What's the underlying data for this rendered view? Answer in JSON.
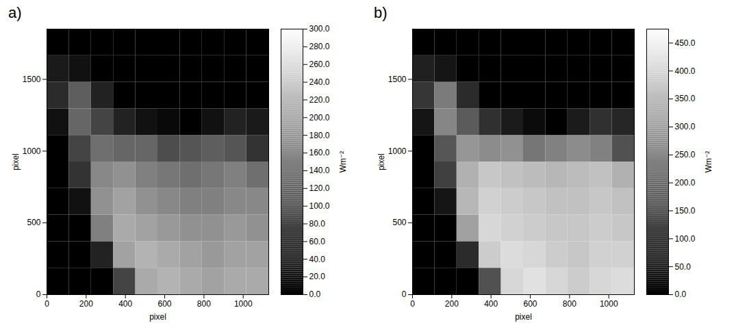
{
  "chart_data": [
    {
      "type": "heatmap",
      "title": "a)",
      "xlabel": "pixel",
      "ylabel": "pixel",
      "xlim": [
        0,
        1130
      ],
      "ylim": [
        0,
        1850
      ],
      "xticks": [
        0,
        200,
        400,
        600,
        800,
        1000
      ],
      "yticks": [
        0,
        500,
        1000,
        1500
      ],
      "x_edges": [
        0,
        113,
        226,
        339,
        452,
        565,
        678,
        791,
        904,
        1017,
        1130
      ],
      "y_edges": [
        0,
        185,
        370,
        555,
        740,
        925,
        1110,
        1295,
        1480,
        1665,
        1850
      ],
      "cells": [
        [
          0,
          0,
          0,
          80,
          200,
          210,
          200,
          190,
          200,
          200
        ],
        [
          0,
          0,
          40,
          190,
          210,
          200,
          190,
          180,
          190,
          190
        ],
        [
          0,
          0,
          150,
          200,
          190,
          180,
          170,
          170,
          180,
          170
        ],
        [
          0,
          20,
          170,
          190,
          170,
          160,
          150,
          150,
          160,
          160
        ],
        [
          0,
          60,
          160,
          170,
          150,
          140,
          130,
          140,
          150,
          130
        ],
        [
          0,
          80,
          130,
          120,
          120,
          90,
          100,
          110,
          100,
          60
        ],
        [
          20,
          120,
          80,
          40,
          20,
          10,
          0,
          20,
          40,
          30
        ],
        [
          50,
          110,
          40,
          0,
          0,
          0,
          0,
          0,
          0,
          0
        ],
        [
          30,
          20,
          0,
          0,
          0,
          0,
          0,
          0,
          0,
          0
        ],
        [
          0,
          0,
          0,
          0,
          0,
          0,
          0,
          0,
          0,
          0
        ]
      ],
      "colorbar": {
        "label": "Wm⁻²",
        "range": [
          0,
          300
        ],
        "ticks": [
          {
            "value": 0,
            "label": "0.0"
          },
          {
            "value": 20,
            "label": "20.0"
          },
          {
            "value": 40,
            "label": "40.0"
          },
          {
            "value": 60,
            "label": "60.0"
          },
          {
            "value": 80,
            "label": "80.0"
          },
          {
            "value": 100,
            "label": "100.0"
          },
          {
            "value": 120,
            "label": "120.0"
          },
          {
            "value": 140,
            "label": "140.0"
          },
          {
            "value": 160,
            "label": "160.0"
          },
          {
            "value": 180,
            "label": "180.0"
          },
          {
            "value": 200,
            "label": "200.0"
          },
          {
            "value": 220,
            "label": "220.0"
          },
          {
            "value": 240,
            "label": "240.0"
          },
          {
            "value": 260,
            "label": "260.0"
          },
          {
            "value": 280,
            "label": "280.0"
          },
          {
            "value": 300,
            "label": "300.0"
          }
        ]
      }
    },
    {
      "type": "heatmap",
      "title": "b)",
      "xlabel": "pixel",
      "ylabel": "pixel",
      "xlim": [
        0,
        1130
      ],
      "ylim": [
        0,
        1850
      ],
      "xticks": [
        0,
        200,
        400,
        600,
        800,
        1000
      ],
      "yticks": [
        0,
        500,
        1000,
        1500
      ],
      "x_edges": [
        0,
        113,
        226,
        339,
        452,
        565,
        678,
        791,
        904,
        1017,
        1130
      ],
      "y_edges": [
        0,
        185,
        370,
        555,
        740,
        925,
        1110,
        1295,
        1480,
        1665,
        1850
      ],
      "cells": [
        [
          0,
          0,
          0,
          150,
          400,
          420,
          400,
          380,
          400,
          410
        ],
        [
          0,
          0,
          80,
          380,
          410,
          400,
          380,
          370,
          390,
          390
        ],
        [
          0,
          0,
          300,
          400,
          390,
          380,
          370,
          370,
          380,
          370
        ],
        [
          0,
          40,
          340,
          390,
          380,
          370,
          360,
          360,
          370,
          360
        ],
        [
          0,
          120,
          330,
          370,
          360,
          350,
          340,
          350,
          360,
          330
        ],
        [
          0,
          160,
          280,
          260,
          270,
          220,
          240,
          260,
          240,
          150
        ],
        [
          40,
          250,
          170,
          90,
          50,
          20,
          0,
          50,
          90,
          70
        ],
        [
          100,
          230,
          80,
          0,
          0,
          0,
          0,
          0,
          0,
          0
        ],
        [
          60,
          40,
          0,
          0,
          0,
          0,
          0,
          0,
          0,
          0
        ],
        [
          0,
          0,
          0,
          0,
          0,
          0,
          0,
          0,
          0,
          0
        ]
      ],
      "colorbar": {
        "label": "Wm⁻²",
        "range": [
          0,
          475
        ],
        "ticks": [
          {
            "value": 0,
            "label": "0.0"
          },
          {
            "value": 50,
            "label": "50.0"
          },
          {
            "value": 100,
            "label": "100.0"
          },
          {
            "value": 150,
            "label": "150.0"
          },
          {
            "value": 200,
            "label": "200.0"
          },
          {
            "value": 250,
            "label": "250.0"
          },
          {
            "value": 300,
            "label": "300.0"
          },
          {
            "value": 350,
            "label": "350.0"
          },
          {
            "value": 400,
            "label": "400.0"
          },
          {
            "value": 450,
            "label": "450.0"
          }
        ]
      }
    }
  ]
}
